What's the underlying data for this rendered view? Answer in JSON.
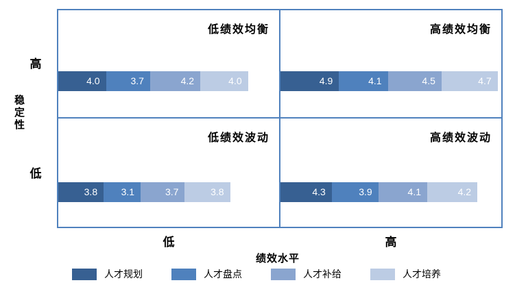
{
  "chart_data": {
    "type": "bar",
    "subtype": "quadrant-matrix-stacked-horizontal-bars",
    "x_axis": {
      "title": "绩效水平",
      "ticks": [
        "低",
        "高"
      ]
    },
    "y_axis": {
      "title": "稳定性",
      "ticks": [
        "高",
        "低"
      ]
    },
    "series": [
      {
        "name": "人才规划",
        "color": "#376092"
      },
      {
        "name": "人才盘点",
        "color": "#4f81bd"
      },
      {
        "name": "人才补给",
        "color": "#8aa5cf"
      },
      {
        "name": "人才培养",
        "color": "#bccce4"
      }
    ],
    "quadrants": [
      {
        "label": "低绩效均衡",
        "position": "top-left",
        "values": [
          4.0,
          3.7,
          4.2,
          4.0
        ]
      },
      {
        "label": "高绩效均衡",
        "position": "top-right",
        "values": [
          4.9,
          4.1,
          4.5,
          4.7
        ]
      },
      {
        "label": "低绩效波动",
        "position": "bottom-left",
        "values": [
          3.8,
          3.1,
          3.7,
          3.8
        ]
      },
      {
        "label": "高绩效波动",
        "position": "bottom-right",
        "values": [
          4.3,
          3.9,
          4.1,
          4.2
        ]
      }
    ],
    "value_label_decimals": 1,
    "colors": {
      "frame": "#4f81bd",
      "value_label": "#ffffff",
      "text": "#000000"
    }
  }
}
